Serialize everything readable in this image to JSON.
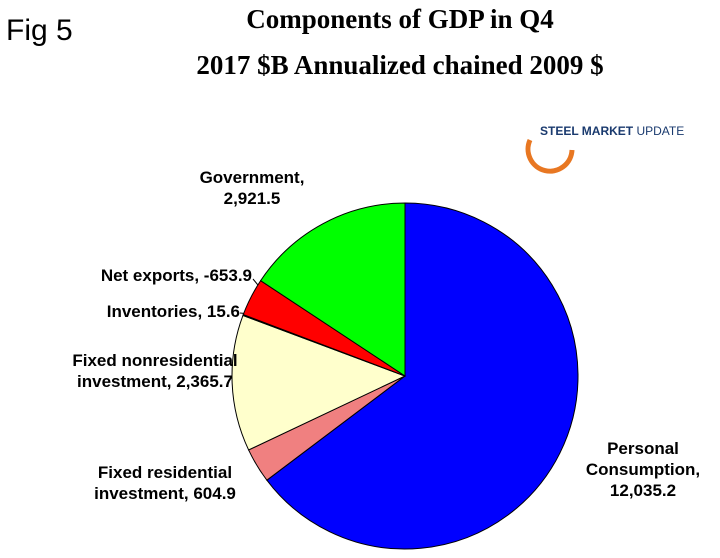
{
  "fig_label": "Fig 5",
  "logo": [
    "STEEL MARKET",
    "UPDATE"
  ],
  "chart_data": {
    "type": "pie",
    "title": "Components of GDP in Q4",
    "subtitle": "2017 $B Annualized chained 2009 $",
    "categories": [
      "Personal Consumption,",
      "Fixed residential investment,",
      "Fixed nonresidential investment,",
      "Inventories,",
      "Net exports,",
      "Government,"
    ],
    "values": [
      12035.2,
      604.9,
      2365.7,
      15.6,
      -653.9,
      2921.5
    ],
    "value_labels": [
      "12,035.2",
      "604.9",
      "2,365.7",
      "15.6",
      "-653.9",
      "2,921.5"
    ],
    "colors": [
      "#0000ff",
      "#f08080",
      "#ffffcc",
      "#c8c8c8",
      "#ff0000",
      "#00ff00"
    ]
  }
}
